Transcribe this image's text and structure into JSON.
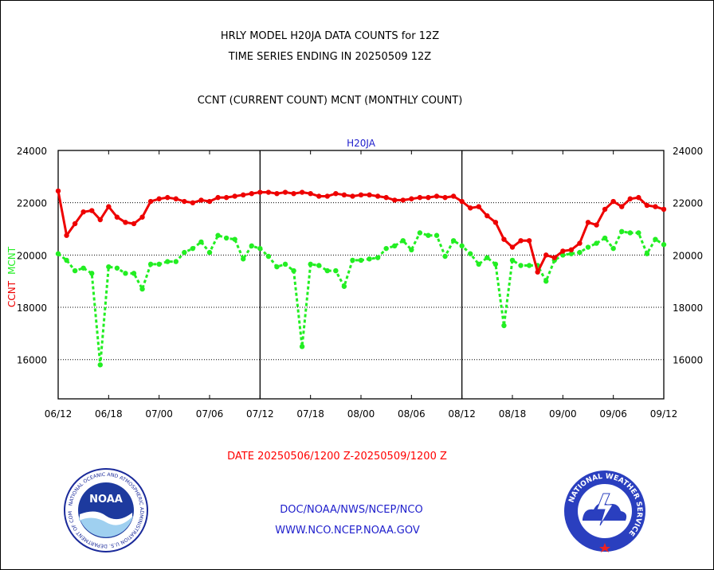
{
  "header": {
    "title_line1": "HRLY MODEL H20JA DATA COUNTS for 12Z",
    "title_line2": "TIME SERIES ENDING IN 20250509 12Z",
    "subtitle": "CCNT (CURRENT COUNT) MCNT (MONTHLY COUNT)"
  },
  "footer": {
    "date_range": "DATE 20250506/1200 Z-20250509/1200 Z",
    "credit_line1": "DOC/NOAA/NWS/NCEP/NCO",
    "credit_line2": "WWW.NCO.NCEP.NOAA.GOV"
  },
  "logos": {
    "noaa_center": "NOAA",
    "noaa_ring": "NATIONAL OCEANIC AND ATMOSPHERIC ADMINISTRATION U.S. DEPARTMENT OF COMMERCE",
    "nws_ring": "NATIONAL WEATHER SERVICE"
  },
  "colors": {
    "ccnt": "#ee0000",
    "mcnt": "#22ee22",
    "panel_title": "#1e1ecc",
    "frame": "#000000"
  },
  "chart_data": {
    "type": "line",
    "title": "H20JA",
    "ylabel_left": "CCNT",
    "ylabel_right": "MCNT",
    "x_tick_labels": [
      "06/12",
      "06/18",
      "07/00",
      "07/06",
      "07/12",
      "07/18",
      "08/00",
      "08/06",
      "08/12",
      "08/18",
      "09/00",
      "09/06",
      "09/12"
    ],
    "x_range_hours": [
      0,
      72
    ],
    "day_dividers_hours": [
      24,
      48
    ],
    "y_ticks": [
      16000,
      18000,
      20000,
      22000,
      24000
    ],
    "y_tick_labels": [
      "16000",
      "18000",
      "20000",
      "22000",
      "24000"
    ],
    "ylim": [
      14500,
      24000
    ],
    "grid": true,
    "hours": [
      0,
      1,
      2,
      3,
      4,
      5,
      6,
      7,
      8,
      9,
      10,
      11,
      12,
      13,
      14,
      15,
      16,
      17,
      18,
      19,
      20,
      21,
      22,
      23,
      24,
      25,
      26,
      27,
      28,
      29,
      30,
      31,
      32,
      33,
      34,
      35,
      36,
      37,
      38,
      39,
      40,
      41,
      42,
      43,
      44,
      45,
      46,
      47,
      48,
      49,
      50,
      51,
      52,
      53,
      54,
      55,
      56,
      57,
      58,
      59,
      60,
      61,
      62,
      63,
      64,
      65,
      66,
      67,
      68,
      69,
      70,
      71,
      72
    ],
    "series": [
      {
        "name": "CCNT",
        "color": "#ee0000",
        "values": [
          22450,
          20750,
          21200,
          21650,
          21700,
          21350,
          21850,
          21450,
          21250,
          21200,
          21450,
          22050,
          22150,
          22200,
          22150,
          22050,
          22000,
          22100,
          22050,
          22200,
          22200,
          22250,
          22300,
          22350,
          22400,
          22400,
          22350,
          22400,
          22350,
          22400,
          22350,
          22250,
          22250,
          22350,
          22300,
          22250,
          22300,
          22300,
          22250,
          22200,
          22100,
          22100,
          22150,
          22200,
          22200,
          22250,
          22200,
          22250,
          22050,
          21800,
          21850,
          21500,
          21250,
          20600,
          20300,
          20550,
          20550,
          19350,
          20000,
          19900,
          20150,
          20200,
          20450,
          21250,
          21150,
          21750,
          22050,
          21850,
          22150,
          22200,
          21900,
          21850,
          21750
        ]
      },
      {
        "name": "MCNT",
        "color": "#22ee22",
        "values": [
          20050,
          19800,
          19400,
          19500,
          19300,
          15800,
          19550,
          19500,
          19300,
          19300,
          18700,
          19650,
          19650,
          19750,
          19750,
          20100,
          20250,
          20500,
          20100,
          20750,
          20650,
          20600,
          19850,
          20350,
          20250,
          19950,
          19550,
          19650,
          19400,
          16500,
          19650,
          19600,
          19400,
          19400,
          18800,
          19800,
          19800,
          19850,
          19900,
          20250,
          20350,
          20550,
          20200,
          20850,
          20750,
          20750,
          19950,
          20550,
          20350,
          20050,
          19650,
          19900,
          19650,
          17300,
          19800,
          19600,
          19600,
          19600,
          19000,
          19800,
          20000,
          20050,
          20100,
          20300,
          20450,
          20650,
          20250,
          20900,
          20850,
          20850,
          20050,
          20600,
          20400
        ]
      }
    ]
  }
}
